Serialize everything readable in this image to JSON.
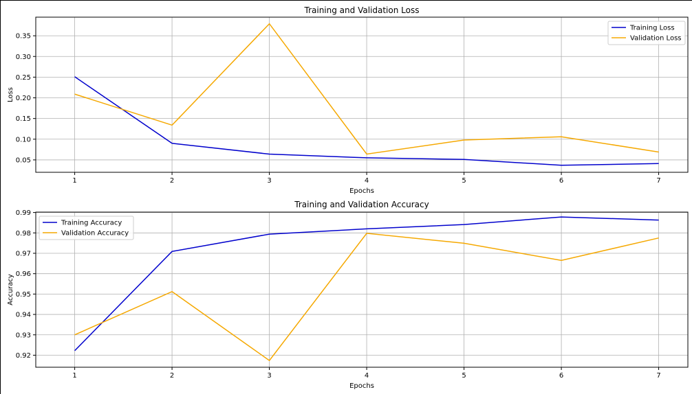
{
  "chart_data": [
    {
      "type": "line",
      "title": "Training and Validation Loss",
      "xlabel": "Epochs",
      "ylabel": "Loss",
      "x": [
        1,
        2,
        3,
        4,
        5,
        6,
        7
      ],
      "xlim": [
        0.6,
        7.3
      ],
      "ylim": [
        0.02,
        0.395
      ],
      "yticks": [
        0.05,
        0.1,
        0.15,
        0.2,
        0.25,
        0.3,
        0.35
      ],
      "ytick_labels": [
        "0.05",
        "0.10",
        "0.15",
        "0.20",
        "0.25",
        "0.30",
        "0.35"
      ],
      "grid": true,
      "legend_position": "upper right",
      "series": [
        {
          "name": "Training Loss",
          "color": "#0000cc",
          "values": [
            0.251,
            0.09,
            0.064,
            0.055,
            0.051,
            0.037,
            0.041
          ]
        },
        {
          "name": "Validation Loss",
          "color": "#f5a800",
          "values": [
            0.209,
            0.134,
            0.379,
            0.064,
            0.098,
            0.106,
            0.069
          ]
        }
      ]
    },
    {
      "type": "line",
      "title": "Training and Validation Accuracy",
      "xlabel": "Epochs",
      "ylabel": "Accuracy",
      "x": [
        1,
        2,
        3,
        4,
        5,
        6,
        7
      ],
      "xlim": [
        0.6,
        7.3
      ],
      "ylim": [
        0.9141,
        0.9902
      ],
      "yticks": [
        0.92,
        0.93,
        0.94,
        0.95,
        0.96,
        0.97,
        0.98,
        0.99
      ],
      "ytick_labels": [
        "0.92",
        "0.93",
        "0.94",
        "0.95",
        "0.96",
        "0.97",
        "0.98",
        "0.99"
      ],
      "grid": true,
      "legend_position": "upper left",
      "series": [
        {
          "name": "Training Accuracy",
          "color": "#0000cc",
          "values": [
            0.9222,
            0.9709,
            0.9794,
            0.982,
            0.9841,
            0.9878,
            0.9863
          ]
        },
        {
          "name": "Validation Accuracy",
          "color": "#f5a800",
          "values": [
            0.93,
            0.9512,
            0.9174,
            0.9798,
            0.9749,
            0.9665,
            0.9775
          ]
        }
      ]
    }
  ]
}
